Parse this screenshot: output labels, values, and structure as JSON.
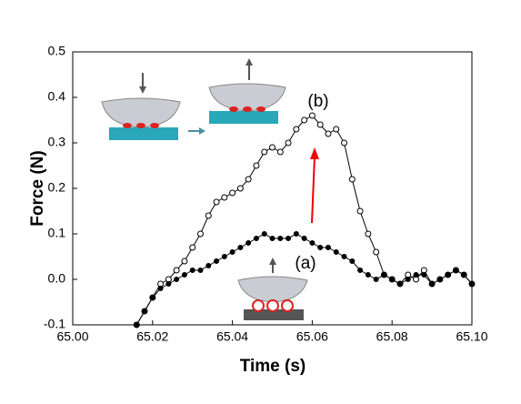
{
  "chart_data": {
    "type": "line",
    "x_label": "Time (s)",
    "y_label": "Force (N)",
    "x": [
      65.016,
      65.018,
      65.02,
      65.022,
      65.024,
      65.026,
      65.028,
      65.03,
      65.032,
      65.034,
      65.036,
      65.038,
      65.04,
      65.042,
      65.044,
      65.046,
      65.048,
      65.05,
      65.052,
      65.054,
      65.056,
      65.058,
      65.06,
      65.062,
      65.064,
      65.066,
      65.068,
      65.07,
      65.072,
      65.074,
      65.076,
      65.078,
      65.08,
      65.082,
      65.084,
      65.086,
      65.088,
      65.09,
      65.092,
      65.094,
      65.096,
      65.098,
      65.1
    ],
    "series": [
      {
        "name": "(b)",
        "color": "#000000",
        "marker": "open",
        "values": [
          -0.1,
          -0.07,
          -0.04,
          -0.01,
          0.0,
          0.02,
          0.04,
          0.07,
          0.1,
          0.14,
          0.17,
          0.18,
          0.19,
          0.2,
          0.22,
          0.25,
          0.28,
          0.29,
          0.28,
          0.3,
          0.33,
          0.35,
          0.36,
          0.34,
          0.32,
          0.33,
          0.3,
          0.22,
          0.15,
          0.1,
          0.06,
          0.01,
          0.0,
          -0.01,
          0.01,
          0.0,
          0.02,
          -0.01,
          0.0,
          0.01,
          0.02,
          0.01,
          -0.01
        ]
      },
      {
        "name": "(a)",
        "color": "#000000",
        "marker": "filled",
        "values": [
          -0.1,
          -0.07,
          -0.04,
          -0.02,
          -0.01,
          0.0,
          0.01,
          0.02,
          0.02,
          0.03,
          0.04,
          0.05,
          0.06,
          0.07,
          0.08,
          0.09,
          0.1,
          0.09,
          0.09,
          0.09,
          0.1,
          0.09,
          0.08,
          0.07,
          0.07,
          0.06,
          0.05,
          0.04,
          0.02,
          0.01,
          0.0,
          0.01,
          0.0,
          -0.01,
          0.0,
          0.01,
          0.01,
          -0.01,
          0.0,
          0.01,
          0.02,
          0.01,
          -0.01
        ]
      }
    ],
    "xlim": [
      65.0,
      65.1
    ],
    "xticks": [
      {
        "value": 65.0,
        "label": "65.00"
      },
      {
        "value": 65.02,
        "label": "65.02"
      },
      {
        "value": 65.04,
        "label": "65.04"
      },
      {
        "value": 65.06,
        "label": "65.06"
      },
      {
        "value": 65.08,
        "label": "65.08"
      },
      {
        "value": 65.1,
        "label": "65.10"
      }
    ],
    "ylim": [
      -0.1,
      0.5
    ],
    "yticks": [
      -0.1,
      {
        "value": 0,
        "label": "0.0"
      },
      0.1,
      0.2,
      0.3,
      0.4,
      0.5
    ]
  }
}
